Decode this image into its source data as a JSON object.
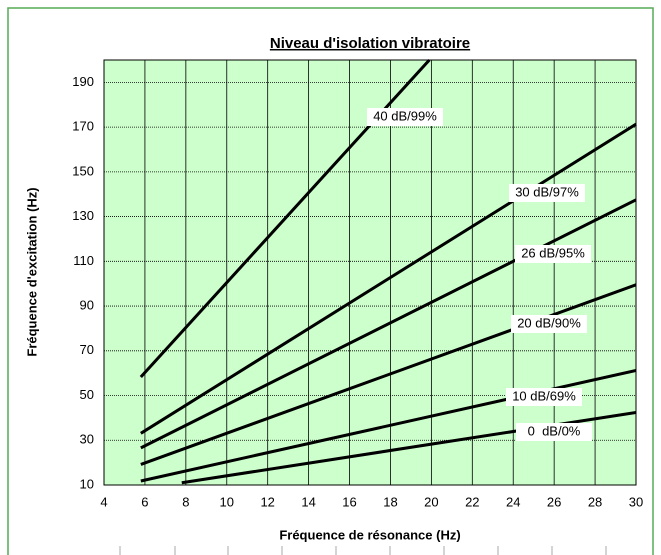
{
  "chart_data": {
    "type": "line",
    "title": "Niveau d'isolation vibratoire",
    "xlabel": "Fréquence de résonance (Hz)",
    "ylabel": "Fréquence d'excitation (Hz)",
    "xlim": [
      4,
      30
    ],
    "xticks": [
      4,
      6,
      8,
      10,
      12,
      14,
      16,
      18,
      20,
      22,
      24,
      26,
      28,
      30
    ],
    "ylim": [
      10,
      200
    ],
    "yticks": [
      10,
      30,
      50,
      70,
      90,
      110,
      130,
      150,
      170,
      190
    ],
    "grid": true,
    "color": "#000000",
    "series": [
      {
        "name": "40 dB/99%",
        "x": [
          5.8,
          19.9
        ],
        "values": [
          58.3,
          200
        ]
      },
      {
        "name": "30 dB/97%",
        "x": [
          5.8,
          30
        ],
        "values": [
          33.1,
          171.3
        ]
      },
      {
        "name": "26 dB/95%",
        "x": [
          5.8,
          30
        ],
        "values": [
          26.6,
          137.5
        ]
      },
      {
        "name": "20 dB/90%",
        "x": [
          5.8,
          30
        ],
        "values": [
          19.2,
          99.5
        ]
      },
      {
        "name": "10 dB/69%",
        "x": [
          5.8,
          30
        ],
        "values": [
          11.8,
          61.2
        ]
      },
      {
        "name": "0  dB/0%",
        "x": [
          7.8,
          30
        ],
        "values": [
          11,
          42.4
        ]
      }
    ]
  }
}
